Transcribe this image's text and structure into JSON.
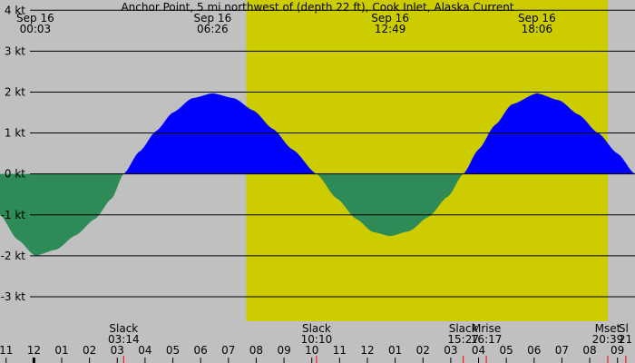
{
  "colors": {
    "background": "#c0c0c0",
    "daylight": "#cccc00",
    "flood": "#0000ff",
    "ebb": "#2e8b57",
    "grid": "#000000",
    "event_tick": "#ff0000"
  },
  "chart_data": {
    "type": "area",
    "title": "Anchor Point, 5 mi northwest of (depth 22 ft), Cook Inlet, Alaska Current",
    "unit": "kt",
    "ylim": [
      -3.6,
      4.25
    ],
    "xlim": [
      -1.22,
      21.63
    ],
    "y_ticks": [
      {
        "value": 4,
        "label": "4 kt"
      },
      {
        "value": 3,
        "label": "3 kt"
      },
      {
        "value": 2,
        "label": "2 kt"
      },
      {
        "value": 1,
        "label": "1 kt"
      },
      {
        "value": 0,
        "label": "0 kt"
      },
      {
        "value": -1,
        "label": "-1 kt"
      },
      {
        "value": -2,
        "label": "-2 kt"
      },
      {
        "value": -3,
        "label": "-3 kt"
      }
    ],
    "daylight": {
      "start": 7.64,
      "end": 20.65
    },
    "extremes": [
      {
        "date": "Sep 16",
        "time": "00:03",
        "hour": 0.05,
        "value": -2.0
      },
      {
        "date": "Sep 16",
        "time": "06:26",
        "hour": 6.43,
        "value": 1.97
      },
      {
        "date": "Sep 16",
        "time": "12:49",
        "hour": 12.82,
        "value": -1.52
      },
      {
        "date": "Sep 16",
        "time": "18:06",
        "hour": 18.1,
        "value": 1.97
      }
    ],
    "slack": [
      {
        "label": "Slack",
        "time": "03:14",
        "hour": 3.23
      },
      {
        "label": "Slack",
        "time": "10:10",
        "hour": 10.17
      },
      {
        "label": "Slack",
        "time": "15:27",
        "hour": 15.45
      }
    ],
    "events": [
      {
        "label": "Mrise",
        "time": "16:17",
        "hour": 16.28
      },
      {
        "label": "Mset",
        "time": "20:39",
        "hour": 20.65
      },
      {
        "label": "Sl",
        "time": "21",
        "hour": 21.3
      }
    ],
    "x_ticks": [
      {
        "hour": -1,
        "label": "11"
      },
      {
        "hour": 0,
        "label": "12"
      },
      {
        "hour": 1,
        "label": "01"
      },
      {
        "hour": 2,
        "label": "02"
      },
      {
        "hour": 3,
        "label": "03"
      },
      {
        "hour": 4,
        "label": "04"
      },
      {
        "hour": 5,
        "label": "05"
      },
      {
        "hour": 6,
        "label": "06"
      },
      {
        "hour": 7,
        "label": "07"
      },
      {
        "hour": 8,
        "label": "08"
      },
      {
        "hour": 9,
        "label": "09"
      },
      {
        "hour": 10,
        "label": "10"
      },
      {
        "hour": 11,
        "label": "11"
      },
      {
        "hour": 12,
        "label": "12"
      },
      {
        "hour": 13,
        "label": "01"
      },
      {
        "hour": 14,
        "label": "02"
      },
      {
        "hour": 15,
        "label": "03"
      },
      {
        "hour": 16,
        "label": "04"
      },
      {
        "hour": 17,
        "label": "05"
      },
      {
        "hour": 18,
        "label": "06"
      },
      {
        "hour": 19,
        "label": "07"
      },
      {
        "hour": 20,
        "label": "08"
      },
      {
        "hour": 21,
        "label": "09"
      }
    ],
    "curve": [
      {
        "hour": -1.22,
        "value": -1.0
      },
      {
        "hour": -0.6,
        "value": -1.6
      },
      {
        "hour": 0.05,
        "value": -2.0
      },
      {
        "hour": 0.8,
        "value": -1.85
      },
      {
        "hour": 1.5,
        "value": -1.5
      },
      {
        "hour": 2.2,
        "value": -1.1
      },
      {
        "hour": 2.8,
        "value": -0.6
      },
      {
        "hour": 3.23,
        "value": 0.0
      },
      {
        "hour": 3.8,
        "value": 0.55
      },
      {
        "hour": 4.4,
        "value": 1.05
      },
      {
        "hour": 5.0,
        "value": 1.5
      },
      {
        "hour": 5.7,
        "value": 1.85
      },
      {
        "hour": 6.43,
        "value": 1.97
      },
      {
        "hour": 7.2,
        "value": 1.85
      },
      {
        "hour": 7.9,
        "value": 1.55
      },
      {
        "hour": 8.6,
        "value": 1.1
      },
      {
        "hour": 9.3,
        "value": 0.6
      },
      {
        "hour": 10.17,
        "value": 0.0
      },
      {
        "hour": 10.9,
        "value": -0.6
      },
      {
        "hour": 11.6,
        "value": -1.1
      },
      {
        "hour": 12.2,
        "value": -1.42
      },
      {
        "hour": 12.82,
        "value": -1.52
      },
      {
        "hour": 13.5,
        "value": -1.4
      },
      {
        "hour": 14.2,
        "value": -1.05
      },
      {
        "hour": 14.9,
        "value": -0.55
      },
      {
        "hour": 15.45,
        "value": 0.0
      },
      {
        "hour": 16.0,
        "value": 0.6
      },
      {
        "hour": 16.6,
        "value": 1.2
      },
      {
        "hour": 17.2,
        "value": 1.7
      },
      {
        "hour": 18.1,
        "value": 1.97
      },
      {
        "hour": 18.9,
        "value": 1.8
      },
      {
        "hour": 19.6,
        "value": 1.45
      },
      {
        "hour": 20.3,
        "value": 1.0
      },
      {
        "hour": 21.0,
        "value": 0.5
      },
      {
        "hour": 21.63,
        "value": 0.0
      }
    ]
  }
}
